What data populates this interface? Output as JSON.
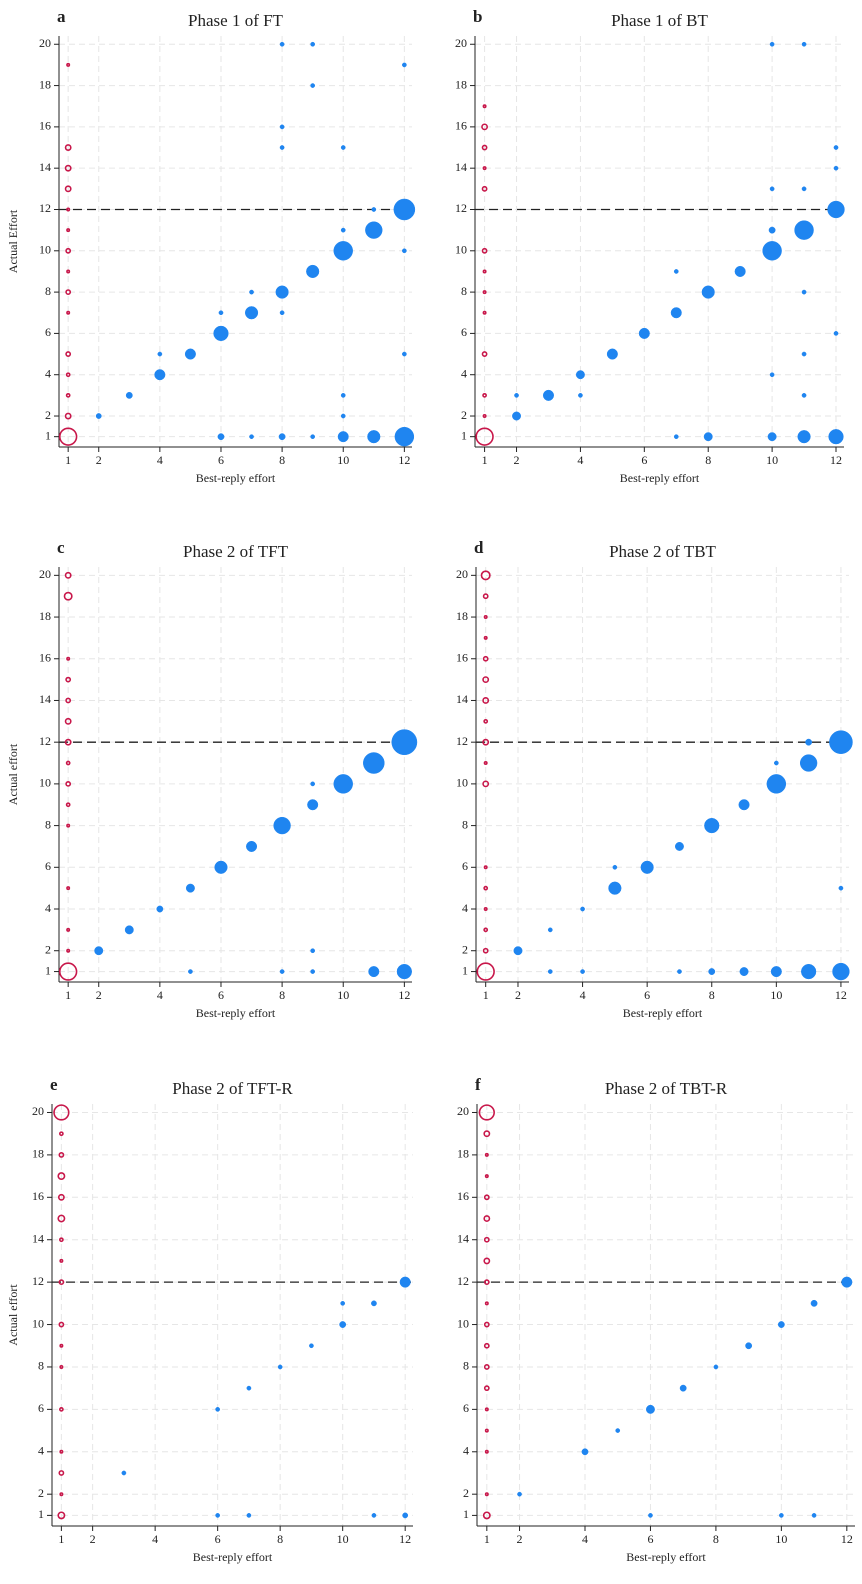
{
  "chart_data": [
    {
      "type": "scatter",
      "panel": "a",
      "title": "Phase 1 of FT",
      "xlabel": "Best-reply effort",
      "ylabel": "Actual Effort",
      "xlim": [
        0.7,
        12.25
      ],
      "ylim": [
        0.5,
        20.4
      ],
      "xticks": [
        1,
        2,
        4,
        6,
        8,
        10,
        12
      ],
      "yticks": [
        1,
        2,
        4,
        6,
        8,
        10,
        12,
        14,
        16,
        18,
        20
      ],
      "grid": true,
      "hline": 12,
      "series": [
        {
          "color": "#c8174a",
          "marker": "hollow",
          "x": [
            1,
            1,
            1,
            1,
            1,
            1,
            1,
            1,
            1,
            1,
            1,
            1,
            1,
            1,
            1
          ],
          "values": [
            1,
            2,
            3,
            4,
            5,
            7,
            8,
            9,
            10,
            11,
            12,
            13,
            14,
            15,
            19
          ],
          "sizes": [
            8,
            2.5,
            1.5,
            1.5,
            2,
            1,
            2,
            1,
            2,
            1,
            1,
            2.5,
            2.5,
            2.5,
            1
          ]
        },
        {
          "color": "#1f85f0",
          "marker": "filled",
          "x": [
            2,
            3,
            4,
            4,
            5,
            6,
            6,
            6,
            7,
            7,
            7,
            8,
            8,
            8,
            8,
            8,
            8,
            9,
            9,
            9,
            9,
            10,
            10,
            10,
            10,
            10,
            10,
            11,
            11,
            11,
            12,
            12,
            12,
            12,
            12
          ],
          "values": [
            2,
            3,
            4,
            5,
            5,
            6,
            7,
            1,
            7,
            8,
            1,
            8,
            7,
            1,
            15,
            16,
            20,
            9,
            1,
            18,
            20,
            10,
            11,
            3,
            2,
            1,
            15,
            11,
            12,
            1,
            12,
            10,
            5,
            19,
            1
          ],
          "sizes": [
            2.5,
            3,
            5,
            2,
            5,
            7,
            2,
            3,
            6,
            2,
            2,
            6,
            2,
            3,
            2,
            2,
            2,
            6,
            2,
            2,
            2,
            9,
            2,
            2,
            2,
            5,
            2,
            8,
            2,
            6,
            10,
            2,
            2,
            2,
            9
          ]
        }
      ]
    },
    {
      "type": "scatter",
      "panel": "b",
      "title": "Phase 1 of BT",
      "xlabel": "Best-reply effort",
      "xlim": [
        0.7,
        12.25
      ],
      "ylim": [
        0.5,
        20.4
      ],
      "xticks": [
        1,
        2,
        4,
        6,
        8,
        10,
        12
      ],
      "yticks": [
        1,
        2,
        4,
        6,
        8,
        10,
        12,
        14,
        16,
        18,
        20
      ],
      "grid": true,
      "hline": 12,
      "series": [
        {
          "color": "#c8174a",
          "marker": "hollow",
          "x": [
            1,
            1,
            1,
            1,
            1,
            1,
            1,
            1,
            1,
            1,
            1,
            1,
            1
          ],
          "values": [
            1,
            2,
            3,
            5,
            7,
            8,
            9,
            10,
            13,
            14,
            15,
            16,
            17
          ],
          "sizes": [
            8,
            1,
            1.5,
            2,
            1,
            1,
            1,
            2,
            2,
            1,
            2,
            2.5,
            1
          ]
        },
        {
          "color": "#1f85f0",
          "marker": "filled",
          "x": [
            2,
            2,
            3,
            4,
            4,
            5,
            6,
            7,
            7,
            7,
            8,
            8,
            9,
            10,
            10,
            10,
            10,
            10,
            10,
            11,
            11,
            11,
            11,
            11,
            11,
            11,
            12,
            12,
            12,
            12,
            12
          ],
          "values": [
            2,
            3,
            3,
            4,
            3,
            5,
            6,
            7,
            9,
            1,
            8,
            1,
            9,
            10,
            11,
            13,
            20,
            4,
            1,
            11,
            13,
            20,
            8,
            5,
            3,
            1,
            12,
            14,
            15,
            6,
            1
          ],
          "sizes": [
            4,
            2,
            5,
            4,
            2,
            5,
            5,
            5,
            2,
            2,
            6,
            4,
            5,
            9,
            3,
            2,
            2,
            2,
            4,
            9,
            2,
            2,
            2,
            2,
            2,
            6,
            8,
            2,
            2,
            2,
            7
          ]
        }
      ]
    },
    {
      "type": "scatter",
      "panel": "c",
      "title": "Phase 2 of TFT",
      "xlabel": "Best-reply effort",
      "ylabel": "Actual effort",
      "xlim": [
        0.7,
        12.25
      ],
      "ylim": [
        0.5,
        20.4
      ],
      "xticks": [
        1,
        2,
        4,
        6,
        8,
        10,
        12
      ],
      "yticks": [
        1,
        2,
        4,
        6,
        8,
        10,
        12,
        14,
        16,
        18,
        20
      ],
      "grid": true,
      "hline": 12,
      "series": [
        {
          "color": "#c8174a",
          "marker": "hollow",
          "x": [
            1,
            1,
            1,
            1,
            1,
            1,
            1,
            1,
            1,
            1,
            1,
            1,
            1,
            1,
            1
          ],
          "values": [
            1,
            2,
            3,
            5,
            8,
            9,
            10,
            11,
            12,
            13,
            14,
            15,
            16,
            19,
            20
          ],
          "sizes": [
            8,
            1,
            1,
            1,
            1,
            1.5,
            2,
            1.5,
            2.5,
            2.5,
            2,
            2,
            1,
            3.5,
            2.5
          ]
        },
        {
          "color": "#1f85f0",
          "marker": "filled",
          "x": [
            2,
            3,
            4,
            5,
            5,
            6,
            7,
            8,
            8,
            9,
            9,
            9,
            9,
            10,
            11,
            11,
            12,
            12
          ],
          "values": [
            2,
            3,
            4,
            5,
            1,
            6,
            7,
            8,
            1,
            9,
            10,
            2,
            1,
            10,
            11,
            1,
            12,
            1
          ],
          "sizes": [
            4,
            4,
            3,
            4,
            2,
            6,
            5,
            8,
            2,
            5,
            2,
            2,
            2,
            9,
            10,
            5,
            12,
            7
          ]
        }
      ]
    },
    {
      "type": "scatter",
      "panel": "d",
      "title": "Phase 2 of TBT",
      "xlabel": "Best-reply effort",
      "xlim": [
        0.7,
        12.25
      ],
      "ylim": [
        0.5,
        20.4
      ],
      "xticks": [
        1,
        2,
        4,
        6,
        8,
        10,
        12
      ],
      "yticks": [
        1,
        2,
        4,
        6,
        8,
        10,
        12,
        14,
        16,
        18,
        20
      ],
      "grid": true,
      "hline": 12,
      "series": [
        {
          "color": "#c8174a",
          "marker": "hollow",
          "x": [
            1,
            1,
            1,
            1,
            1,
            1,
            1,
            1,
            1,
            1,
            1,
            1,
            1,
            1,
            1,
            1,
            1
          ],
          "values": [
            1,
            2,
            3,
            4,
            5,
            6,
            10,
            11,
            12,
            13,
            14,
            15,
            16,
            17,
            18,
            19,
            20
          ],
          "sizes": [
            8,
            2,
            1.5,
            1,
            1.5,
            1,
            2.5,
            1,
            2.5,
            1.5,
            2.5,
            2.5,
            2,
            1,
            1,
            2,
            4
          ]
        },
        {
          "color": "#1f85f0",
          "marker": "filled",
          "x": [
            2,
            3,
            3,
            4,
            4,
            5,
            5,
            6,
            7,
            7,
            8,
            8,
            9,
            9,
            10,
            10,
            10,
            11,
            11,
            11,
            12,
            12,
            12
          ],
          "values": [
            2,
            3,
            1,
            4,
            1,
            5,
            6,
            6,
            7,
            1,
            8,
            1,
            9,
            1,
            10,
            11,
            1,
            11,
            12,
            1,
            12,
            5,
            1
          ],
          "sizes": [
            4,
            2,
            2,
            2,
            2,
            6,
            2,
            6,
            4,
            2,
            7,
            3,
            5,
            4,
            9,
            2,
            5,
            8,
            3,
            7,
            11,
            2,
            8
          ]
        }
      ]
    },
    {
      "type": "scatter",
      "panel": "e",
      "title": "Phase 2 of TFT-R",
      "xlabel": "Best-reply effort",
      "ylabel": "Actual effort",
      "xlim": [
        0.7,
        12.25
      ],
      "ylim": [
        0.5,
        20.4
      ],
      "xticks": [
        1,
        2,
        4,
        6,
        8,
        10,
        12
      ],
      "yticks": [
        1,
        2,
        4,
        6,
        8,
        10,
        12,
        14,
        16,
        18,
        20
      ],
      "grid": true,
      "hline": 12,
      "series": [
        {
          "color": "#c8174a",
          "marker": "hollow",
          "x": [
            1,
            1,
            1,
            1,
            1,
            1,
            1,
            1,
            1,
            1,
            1,
            1,
            1,
            1,
            1,
            1,
            1
          ],
          "values": [
            1,
            2,
            3,
            4,
            6,
            8,
            9,
            10,
            12,
            13,
            14,
            15,
            16,
            17,
            18,
            19,
            20
          ],
          "sizes": [
            3,
            1,
            2,
            1,
            1.5,
            1,
            1,
            2,
            2,
            1,
            1.5,
            3,
            2.5,
            3,
            2,
            1.5,
            7
          ]
        },
        {
          "color": "#1f85f0",
          "marker": "filled",
          "x": [
            3,
            6,
            6,
            7,
            7,
            8,
            9,
            10,
            10,
            11,
            11,
            12,
            12
          ],
          "values": [
            3,
            6,
            1,
            7,
            1,
            8,
            9,
            10,
            11,
            11,
            1,
            12,
            1
          ],
          "sizes": [
            2,
            2,
            2,
            2,
            2,
            2,
            2,
            3,
            2,
            2.5,
            2,
            5,
            2.5
          ]
        }
      ]
    },
    {
      "type": "scatter",
      "panel": "f",
      "title": "Phase 2 of TBT-R",
      "xlabel": "Best-reply effort",
      "xlim": [
        0.7,
        12.25
      ],
      "ylim": [
        0.5,
        20.4
      ],
      "xticks": [
        1,
        2,
        4,
        6,
        8,
        10,
        12
      ],
      "yticks": [
        1,
        2,
        4,
        6,
        8,
        10,
        12,
        14,
        16,
        18,
        20
      ],
      "grid": true,
      "hline": 12,
      "series": [
        {
          "color": "#c8174a",
          "marker": "hollow",
          "x": [
            1,
            1,
            1,
            1,
            1,
            1,
            1,
            1,
            1,
            1,
            1,
            1,
            1,
            1,
            1,
            1,
            1,
            1,
            1
          ],
          "values": [
            1,
            2,
            4,
            5,
            6,
            7,
            8,
            9,
            10,
            11,
            12,
            13,
            14,
            15,
            16,
            17,
            18,
            19,
            20
          ],
          "sizes": [
            3,
            1,
            1,
            1,
            1,
            2,
            2,
            2,
            2,
            1,
            2,
            2.5,
            2,
            2.5,
            2,
            1,
            1,
            2.5,
            7
          ]
        },
        {
          "color": "#1f85f0",
          "marker": "filled",
          "x": [
            2,
            4,
            5,
            6,
            6,
            7,
            8,
            9,
            10,
            10,
            11,
            11,
            12
          ],
          "values": [
            2,
            4,
            5,
            6,
            1,
            7,
            8,
            9,
            10,
            1,
            11,
            1,
            12
          ],
          "sizes": [
            2,
            3,
            2,
            4,
            2,
            3,
            2,
            3,
            3,
            2,
            3,
            2,
            5
          ]
        }
      ]
    }
  ]
}
